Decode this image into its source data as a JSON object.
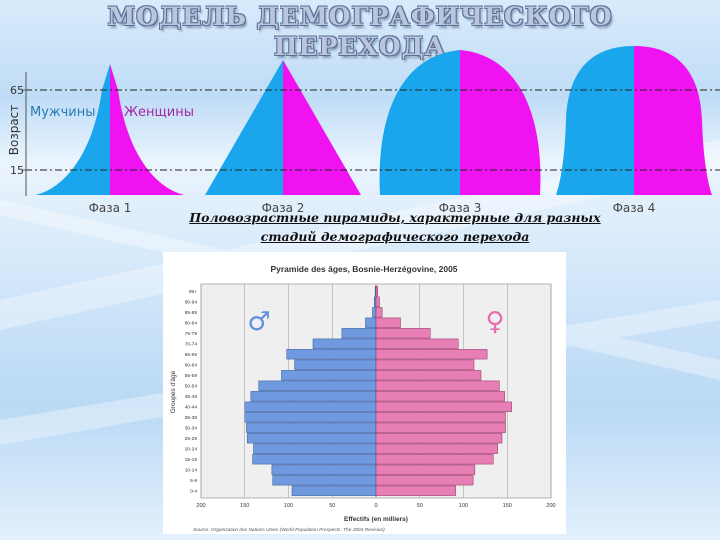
{
  "title": {
    "line1": "МОДЕЛЬ ДЕМОГРАФИЧЕСКОГО",
    "line2": "ПЕРЕХОДА"
  },
  "transition_diagram": {
    "y_axis_label": "Возраст",
    "age_marks": [
      "65",
      "15"
    ],
    "male_label": "Мужчины",
    "female_label": "Женщины",
    "phases": [
      "Фаза 1",
      "Фаза 2",
      "Фаза 3",
      "Фаза 4"
    ],
    "colors": {
      "male": "#1aa6ec",
      "female": "#f012f0"
    }
  },
  "subtitle": {
    "line1": "Половозрастные пирамиды, характерные для разных",
    "line2": "стадий демографического перехода"
  },
  "chart_data": {
    "type": "bar",
    "orientation": "horizontal-population-pyramid",
    "title": "Pyramide des âges, Bosnie-Herzégovine, 2005",
    "xlabel": "Effectifs (en milliers)",
    "ylabel": "Groupes d'âge",
    "source": "Source: Organisation des Nations Unies (World Population Prospects: The 2004 Revision)",
    "x_ticks": [
      "200",
      "150",
      "100",
      "50",
      "0",
      "50",
      "100",
      "150",
      "200"
    ],
    "xlim": [
      -200,
      200
    ],
    "categories": [
      "0-4",
      "5-9",
      "10-14",
      "15-19",
      "20-24",
      "25-29",
      "30-34",
      "35-39",
      "40-44",
      "45-49",
      "50-54",
      "55-59",
      "60-64",
      "65-69",
      "70-74",
      "75-79",
      "80-84",
      "85-89",
      "90-94",
      "95+"
    ],
    "series": [
      {
        "name": "♂",
        "color": "#6f9ae0",
        "values": [
          96,
          118,
          119,
          141,
          140,
          147,
          148,
          150,
          150,
          143,
          134,
          108,
          93,
          102,
          72,
          39,
          12,
          4,
          2,
          1
        ]
      },
      {
        "name": "♀",
        "color": "#e87fb4",
        "values": [
          91,
          111,
          113,
          134,
          139,
          144,
          148,
          148,
          155,
          147,
          141,
          120,
          112,
          127,
          94,
          62,
          28,
          7,
          4,
          2
        ]
      }
    ],
    "grid": true,
    "legend": "symbols top-left and top-right"
  }
}
